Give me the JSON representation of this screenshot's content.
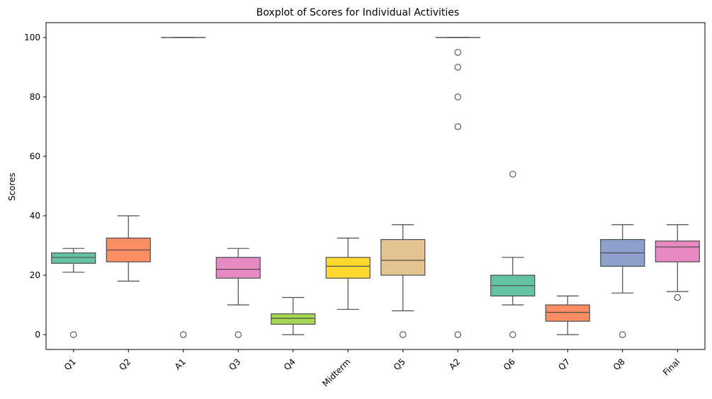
{
  "chart_data": {
    "type": "box",
    "title": "Boxplot of Scores for Individual Activities",
    "xlabel": "",
    "ylabel": "Scores",
    "ylim": [
      -5,
      105
    ],
    "yticks": [
      0,
      20,
      40,
      60,
      80,
      100
    ],
    "grid": false,
    "legend": "none",
    "categories": [
      "Q1",
      "Q2",
      "A1",
      "Q3",
      "Q4",
      "Midterm",
      "Q5",
      "A2",
      "Q6",
      "Q7",
      "Q8",
      "Final"
    ],
    "boxes": [
      {
        "label": "Q1",
        "color": "#66c2a5",
        "whisker_low": 21,
        "q1": 24,
        "median": 26,
        "q3": 27.5,
        "whisker_high": 29,
        "outliers": [
          0
        ]
      },
      {
        "label": "Q2",
        "color": "#fc8d62",
        "whisker_low": 18,
        "q1": 24.5,
        "median": 28.5,
        "q3": 32.5,
        "whisker_high": 40,
        "outliers": []
      },
      {
        "label": "A1",
        "color": "#8da0cb",
        "whisker_low": 100,
        "q1": 100,
        "median": 100,
        "q3": 100,
        "whisker_high": 100,
        "outliers": [
          0
        ]
      },
      {
        "label": "Q3",
        "color": "#e78ac3",
        "whisker_low": 10,
        "q1": 19,
        "median": 22,
        "q3": 26,
        "whisker_high": 29,
        "outliers": [
          0
        ]
      },
      {
        "label": "Q4",
        "color": "#a6d854",
        "whisker_low": 0,
        "q1": 3.5,
        "median": 5.5,
        "q3": 7,
        "whisker_high": 12.5,
        "outliers": []
      },
      {
        "label": "Midterm",
        "color": "#ffd92f",
        "whisker_low": 8.5,
        "q1": 19,
        "median": 23,
        "q3": 26,
        "whisker_high": 32.5,
        "outliers": []
      },
      {
        "label": "Q5",
        "color": "#e5c494",
        "whisker_low": 8,
        "q1": 20,
        "median": 25,
        "q3": 32,
        "whisker_high": 37,
        "outliers": [
          0
        ]
      },
      {
        "label": "A2",
        "color": "#b3b3b3",
        "whisker_low": 100,
        "q1": 100,
        "median": 100,
        "q3": 100,
        "whisker_high": 100,
        "outliers": [
          95,
          90,
          80,
          70,
          0
        ]
      },
      {
        "label": "Q6",
        "color": "#66c2a5",
        "whisker_low": 10,
        "q1": 13,
        "median": 16.5,
        "q3": 20,
        "whisker_high": 26,
        "outliers": [
          54,
          0
        ]
      },
      {
        "label": "Q7",
        "color": "#fc8d62",
        "whisker_low": 0,
        "q1": 4.5,
        "median": 7.5,
        "q3": 10,
        "whisker_high": 13,
        "outliers": []
      },
      {
        "label": "Q8",
        "color": "#8da0cb",
        "whisker_low": 14,
        "q1": 23,
        "median": 27.5,
        "q3": 32,
        "whisker_high": 37,
        "outliers": [
          0
        ]
      },
      {
        "label": "Final",
        "color": "#e78ac3",
        "whisker_low": 14.5,
        "q1": 24.5,
        "median": 29.5,
        "q3": 31.5,
        "whisker_high": 37,
        "outliers": [
          12.5
        ]
      }
    ]
  }
}
